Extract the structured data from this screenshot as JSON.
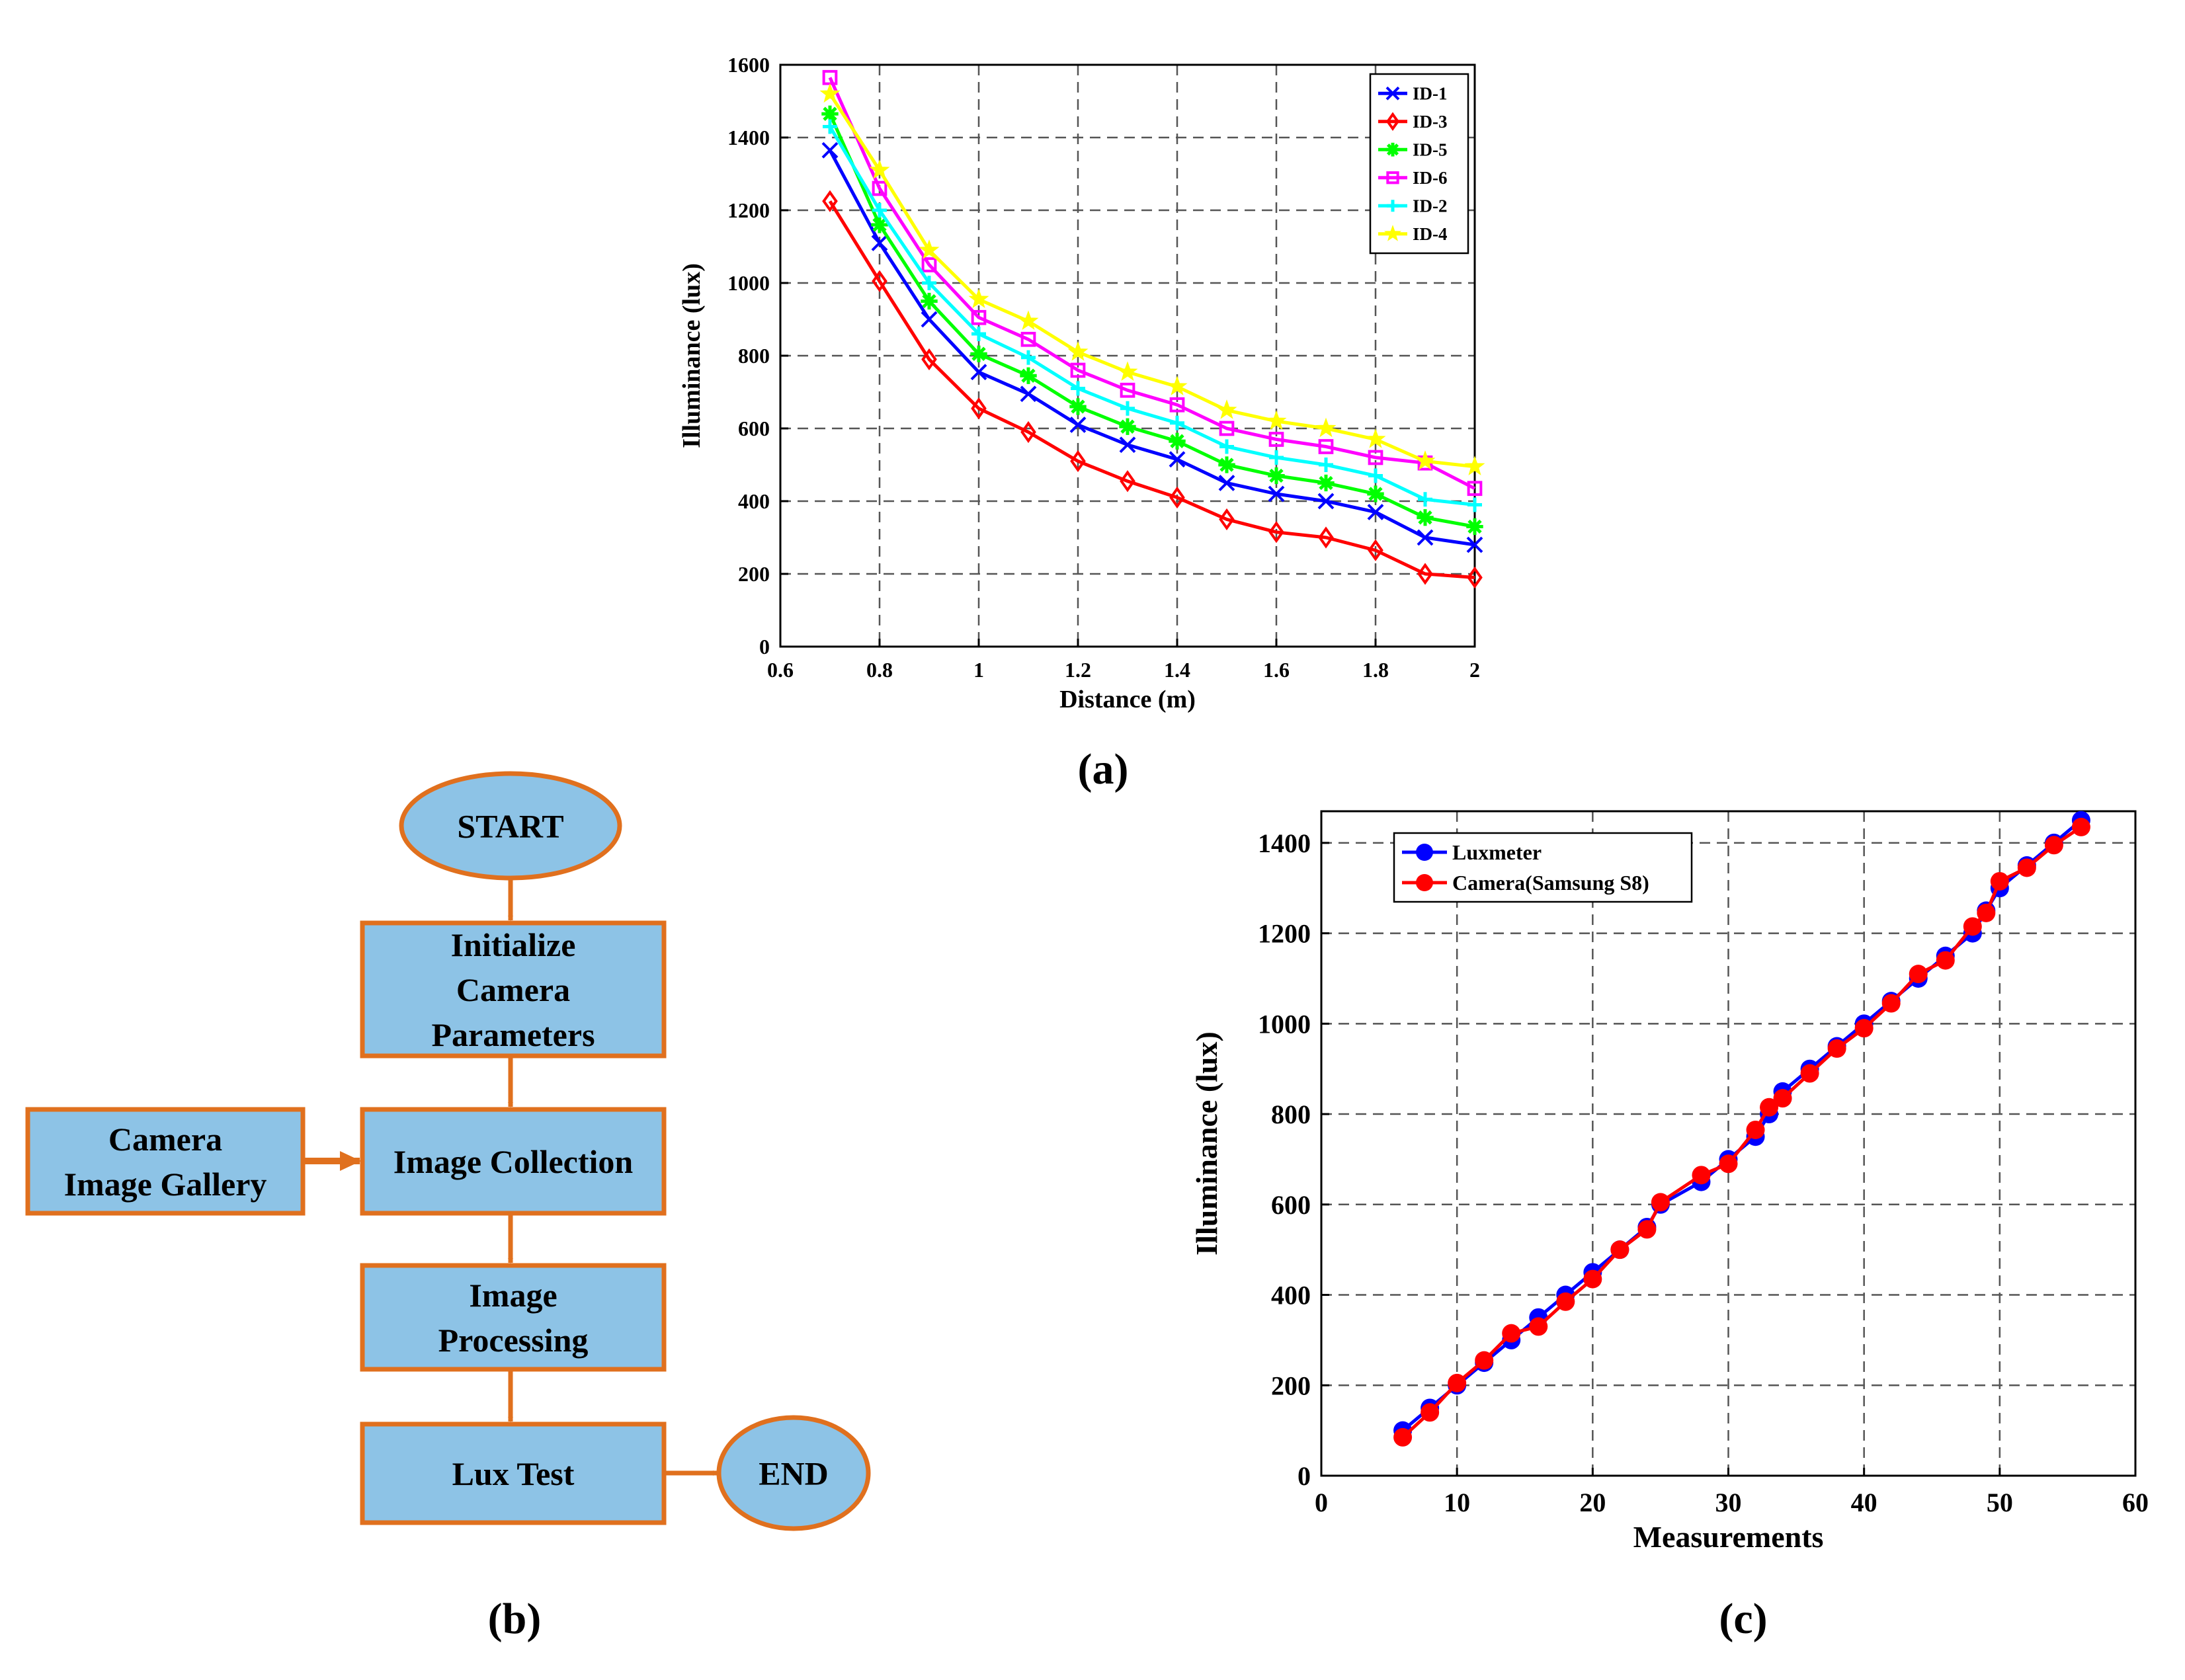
{
  "panel_labels": {
    "a": "(a)",
    "b": "(b)",
    "c": "(c)"
  },
  "colors": {
    "flow_fill": "#8DC3E6",
    "flow_stroke": "#E0701E",
    "grid": "#555555",
    "axis": "#000000"
  },
  "flowchart": {
    "nodes": {
      "start": {
        "lines": [
          "START"
        ]
      },
      "init": {
        "lines": [
          "Initialize",
          "Camera",
          "Parameters"
        ]
      },
      "gallery": {
        "lines": [
          "Camera",
          "Image Gallery"
        ]
      },
      "collect": {
        "lines": [
          "Image Collection"
        ]
      },
      "process": {
        "lines": [
          "Image",
          "Processing"
        ]
      },
      "luxtest": {
        "lines": [
          "Lux Test"
        ]
      },
      "end": {
        "lines": [
          "END"
        ]
      }
    },
    "edges": [
      [
        "start",
        "init"
      ],
      [
        "init",
        "collect"
      ],
      [
        "gallery",
        "collect"
      ],
      [
        "collect",
        "process"
      ],
      [
        "process",
        "luxtest"
      ],
      [
        "luxtest",
        "end"
      ]
    ]
  },
  "chart_data": [
    {
      "type": "line",
      "panel": "a",
      "title": "",
      "xlabel": "Distance (m)",
      "ylabel": "Illuminance (lux)",
      "xlim": [
        0.6,
        2
      ],
      "ylim": [
        0,
        1600
      ],
      "xticks": [
        0.6,
        0.8,
        1,
        1.2,
        1.4,
        1.6,
        1.8,
        2
      ],
      "yticks": [
        0,
        200,
        400,
        600,
        800,
        1000,
        1200,
        1400,
        1600
      ],
      "grid": true,
      "legend_position": "top-right",
      "x": [
        0.7,
        0.8,
        0.9,
        1.0,
        1.1,
        1.2,
        1.3,
        1.4,
        1.5,
        1.6,
        1.7,
        1.8,
        1.9,
        2.0
      ],
      "series": [
        {
          "name": "ID-1",
          "color": "#0000FF",
          "marker": "x",
          "values": [
            1365,
            1110,
            900,
            755,
            695,
            610,
            555,
            515,
            450,
            420,
            400,
            370,
            300,
            280
          ]
        },
        {
          "name": "ID-3",
          "color": "#FF0000",
          "marker": "diamond",
          "values": [
            1225,
            1005,
            790,
            655,
            590,
            510,
            455,
            410,
            350,
            315,
            300,
            265,
            200,
            190
          ]
        },
        {
          "name": "ID-5",
          "color": "#00FF00",
          "marker": "star",
          "values": [
            1465,
            1160,
            950,
            805,
            745,
            660,
            605,
            565,
            500,
            470,
            450,
            420,
            355,
            330
          ]
        },
        {
          "name": "ID-6",
          "color": "#FF00FF",
          "marker": "square",
          "values": [
            1565,
            1260,
            1050,
            905,
            845,
            760,
            705,
            665,
            600,
            570,
            550,
            520,
            505,
            435
          ]
        },
        {
          "name": "ID-2",
          "color": "#00FFFF",
          "marker": "plus",
          "values": [
            1430,
            1200,
            1000,
            860,
            795,
            710,
            655,
            615,
            550,
            520,
            500,
            470,
            405,
            390
          ]
        },
        {
          "name": "ID-4",
          "color": "#FFFF00",
          "marker": "pentagram",
          "values": [
            1520,
            1310,
            1090,
            955,
            895,
            810,
            755,
            715,
            650,
            620,
            600,
            570,
            510,
            495
          ]
        }
      ]
    },
    {
      "type": "line",
      "panel": "c",
      "title": "",
      "xlabel": "Measurements",
      "ylabel": "Illuminance (lux)",
      "xlim": [
        0,
        60
      ],
      "ylim": [
        0,
        1470
      ],
      "xticks": [
        0,
        10,
        20,
        30,
        40,
        50,
        60
      ],
      "yticks": [
        0,
        200,
        400,
        600,
        800,
        1000,
        1200,
        1400
      ],
      "grid": true,
      "legend_position": "top-left",
      "series": [
        {
          "name": "Luxmeter",
          "color": "#0000FF",
          "marker": "circle",
          "x": [
            6,
            8,
            10,
            12,
            14,
            16,
            18,
            20,
            22,
            24,
            25,
            28,
            30,
            32,
            33,
            34,
            36,
            38,
            40,
            42,
            44,
            46,
            48,
            49,
            50,
            52,
            54,
            56
          ],
          "values": [
            100,
            150,
            200,
            250,
            300,
            350,
            400,
            450,
            500,
            550,
            600,
            650,
            700,
            750,
            800,
            850,
            900,
            950,
            1000,
            1050,
            1100,
            1150,
            1200,
            1250,
            1300,
            1350,
            1400,
            1450
          ]
        },
        {
          "name": "Camera(Samsung S8)",
          "color": "#FF0000",
          "marker": "circle",
          "x": [
            6,
            8,
            10,
            12,
            14,
            16,
            18,
            20,
            22,
            24,
            25,
            28,
            30,
            32,
            33,
            34,
            36,
            38,
            40,
            42,
            44,
            46,
            48,
            49,
            50,
            52,
            54,
            56
          ],
          "values": [
            85,
            140,
            205,
            255,
            315,
            330,
            385,
            435,
            500,
            545,
            605,
            665,
            690,
            765,
            815,
            835,
            890,
            945,
            990,
            1045,
            1110,
            1140,
            1215,
            1245,
            1315,
            1345,
            1395,
            1435
          ]
        }
      ]
    }
  ]
}
